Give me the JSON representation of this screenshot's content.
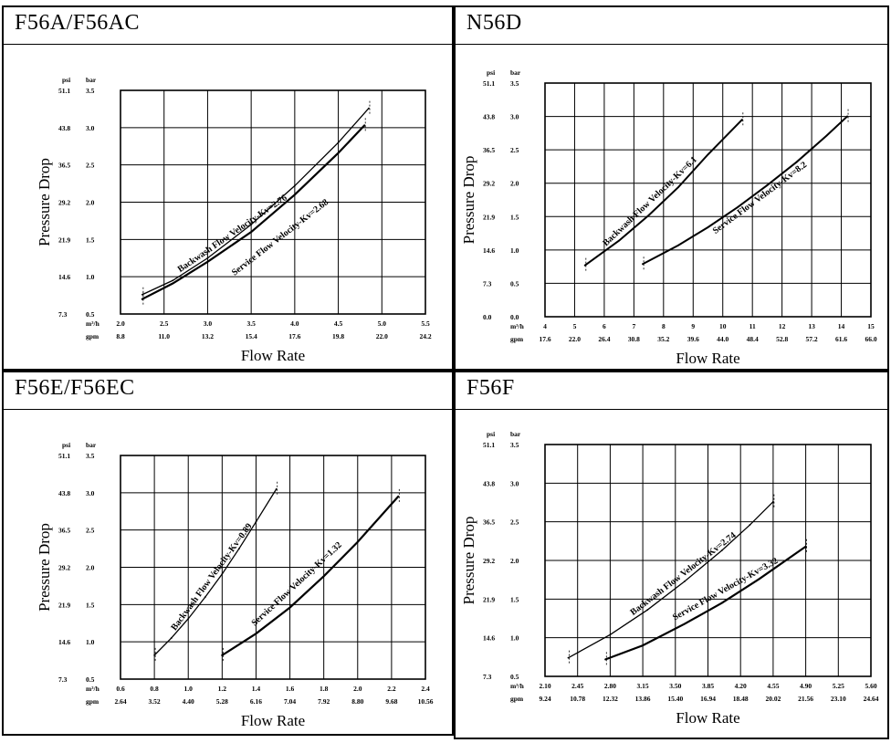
{
  "chart_data": [
    {
      "id": "f56a",
      "type": "line",
      "title": "F56A/F56AC",
      "xlabel": "Flow Rate",
      "ylabel": "Pressure Drop",
      "x_unit_label": "m³/h",
      "x_unit2_label": "gpm",
      "y_unit_label": "psi",
      "y_unit2_label": "bar",
      "x_ticks": [
        "2.0",
        "2.5",
        "3.0",
        "3.5",
        "4.0",
        "4.5",
        "5.0",
        "5.5"
      ],
      "x_ticks_gpm": [
        "8.8",
        "11.0",
        "13.2",
        "15.4",
        "17.6",
        "19.8",
        "22.0",
        "24.2"
      ],
      "xlim": [
        2.0,
        5.5
      ],
      "y_ticks_bar": [
        "0.5",
        "1.0",
        "1.5",
        "2.0",
        "2.5",
        "3.0",
        "3.5"
      ],
      "y_ticks_psi": [
        "7.3",
        "14.6",
        "21.9",
        "29.2",
        "36.5",
        "43.8",
        "51.1"
      ],
      "ylim": [
        0.5,
        3.5
      ],
      "grid": true,
      "series": [
        {
          "name": "Backwash Flow Velocity-Kv=2.76",
          "label_at": [
            3.3,
            1.55
          ],
          "color": "#000000",
          "width": 2.2,
          "x": [
            2.25,
            2.6,
            3.0,
            3.5,
            4.0,
            4.5,
            4.8
          ],
          "y": [
            0.7,
            0.91,
            1.2,
            1.6,
            2.1,
            2.66,
            3.03
          ]
        },
        {
          "name": "Service Flow Velocity-Kv=2.68",
          "label_at": [
            3.85,
            1.5
          ],
          "color": "#000000",
          "width": 1.3,
          "x": [
            2.25,
            2.6,
            3.0,
            3.5,
            4.0,
            4.5,
            4.85
          ],
          "y": [
            0.76,
            0.95,
            1.25,
            1.7,
            2.22,
            2.8,
            3.26
          ]
        }
      ]
    },
    {
      "id": "n56d",
      "type": "line",
      "title": "N56D",
      "xlabel": "Flow Rate",
      "ylabel": "Pressure Drop",
      "x_unit_label": "m³/h",
      "x_unit2_label": "gpm",
      "y_unit_label": "psi",
      "y_unit2_label": "bar",
      "x_ticks": [
        "4",
        "5",
        "6",
        "7",
        "8",
        "9",
        "10",
        "11",
        "12",
        "13",
        "14",
        "15"
      ],
      "x_ticks_gpm": [
        "17.6",
        "22.0",
        "26.4",
        "30.8",
        "35.2",
        "39.6",
        "44.0",
        "48.4",
        "52.8",
        "57.2",
        "61.6",
        "66.0"
      ],
      "xlim": [
        4,
        15
      ],
      "y_ticks_bar": [
        "0.0",
        "0.5",
        "1.0",
        "1.5",
        "2.0",
        "2.5",
        "3.0",
        "3.5"
      ],
      "y_ticks_psi": [
        "0.0",
        "7.3",
        "14.6",
        "21.9",
        "29.2",
        "36.5",
        "43.8",
        "51.1"
      ],
      "ylim": [
        0,
        3.5
      ],
      "grid": true,
      "series": [
        {
          "name": "Backwash Flow Velocity-Kv=6.1",
          "label_at": [
            7.6,
            1.7
          ],
          "color": "#000000",
          "width": 2.0,
          "x": [
            5.35,
            6.5,
            7.5,
            8.5,
            9.5,
            10.65
          ],
          "y": [
            0.77,
            1.14,
            1.52,
            1.94,
            2.43,
            2.95
          ]
        },
        {
          "name": "Service Flow Velocity-Kv=8.2",
          "label_at": [
            11.3,
            1.75
          ],
          "color": "#000000",
          "width": 2.0,
          "x": [
            7.3,
            8.5,
            9.5,
            10.5,
            11.5,
            12.5,
            13.5,
            14.2
          ],
          "y": [
            0.79,
            1.07,
            1.34,
            1.64,
            1.97,
            2.32,
            2.71,
            3.0
          ]
        }
      ]
    },
    {
      "id": "f56e",
      "type": "line",
      "title": "F56E/F56EC",
      "xlabel": "Flow Rate",
      "ylabel": "Pressure Drop",
      "x_unit_label": "m³/h",
      "x_unit2_label": "gpm",
      "y_unit_label": "psi",
      "y_unit2_label": "bar",
      "x_ticks": [
        "0.6",
        "0.8",
        "1.0",
        "1.2",
        "1.4",
        "1.6",
        "1.8",
        "2.0",
        "2.2",
        "2.4"
      ],
      "x_ticks_gpm": [
        "2.64",
        "3.52",
        "4.40",
        "5.28",
        "6.16",
        "7.04",
        "7.92",
        "8.80",
        "9.68",
        "10.56"
      ],
      "xlim": [
        0.6,
        2.4
      ],
      "y_ticks_bar": [
        "0.5",
        "1.0",
        "1.5",
        "2.0",
        "2.5",
        "3.0",
        "3.5"
      ],
      "y_ticks_psi": [
        "7.3",
        "14.6",
        "21.9",
        "29.2",
        "36.5",
        "43.8",
        "51.1"
      ],
      "ylim": [
        0.5,
        3.5
      ],
      "grid": true,
      "series": [
        {
          "name": "Backwash Flow Velocity-Kv=0.89",
          "label_at": [
            1.15,
            1.85
          ],
          "color": "#000000",
          "width": 1.3,
          "x": [
            0.8,
            0.9,
            1.0,
            1.1,
            1.2,
            1.3,
            1.4,
            1.52
          ],
          "y": [
            0.82,
            1.05,
            1.31,
            1.6,
            1.91,
            2.25,
            2.61,
            3.05
          ]
        },
        {
          "name": "Service Flow Velocity-Kv=1.32",
          "label_at": [
            1.65,
            1.75
          ],
          "color": "#000000",
          "width": 2.2,
          "x": [
            1.2,
            1.4,
            1.6,
            1.8,
            2.0,
            2.24
          ],
          "y": [
            0.82,
            1.11,
            1.46,
            1.88,
            2.34,
            2.95
          ]
        }
      ]
    },
    {
      "id": "f56f",
      "type": "line",
      "title": "F56F",
      "xlabel": "Flow Rate",
      "ylabel": "Pressure Drop",
      "x_unit_label": "m³/h",
      "x_unit2_label": "gpm",
      "y_unit_label": "psi",
      "y_unit2_label": "bar",
      "x_ticks": [
        "2.10",
        "2.45",
        "2.80",
        "3.15",
        "3.50",
        "3.85",
        "4.20",
        "4.55",
        "4.90",
        "5.25",
        "5.60"
      ],
      "x_ticks_gpm": [
        "9.24",
        "10.78",
        "12.32",
        "13.86",
        "15.40",
        "16.94",
        "18.48",
        "20.02",
        "21.56",
        "23.10",
        "24.64"
      ],
      "xlim": [
        2.1,
        5.6
      ],
      "y_ticks_bar": [
        "0.5",
        "1.0",
        "1.5",
        "2.0",
        "2.5",
        "3.0",
        "3.5"
      ],
      "y_ticks_psi": [
        "7.3",
        "14.6",
        "21.9",
        "29.2",
        "36.5",
        "43.8",
        "51.1"
      ],
      "ylim": [
        0.5,
        3.5
      ],
      "grid": true,
      "series": [
        {
          "name": "Backwash Flow Velocity-Kv=2.74",
          "label_at": [
            3.6,
            1.8
          ],
          "color": "#000000",
          "width": 1.3,
          "x": [
            2.35,
            2.8,
            3.2,
            3.6,
            4.0,
            4.3,
            4.55
          ],
          "y": [
            0.74,
            1.04,
            1.36,
            1.73,
            2.13,
            2.46,
            2.76
          ]
        },
        {
          "name": "Service Flow Velocity-Kv=3.32",
          "label_at": [
            4.05,
            1.6
          ],
          "color": "#000000",
          "width": 2.2,
          "x": [
            2.75,
            3.15,
            3.6,
            4.0,
            4.4,
            4.9
          ],
          "y": [
            0.72,
            0.9,
            1.18,
            1.45,
            1.76,
            2.18
          ]
        }
      ]
    }
  ]
}
